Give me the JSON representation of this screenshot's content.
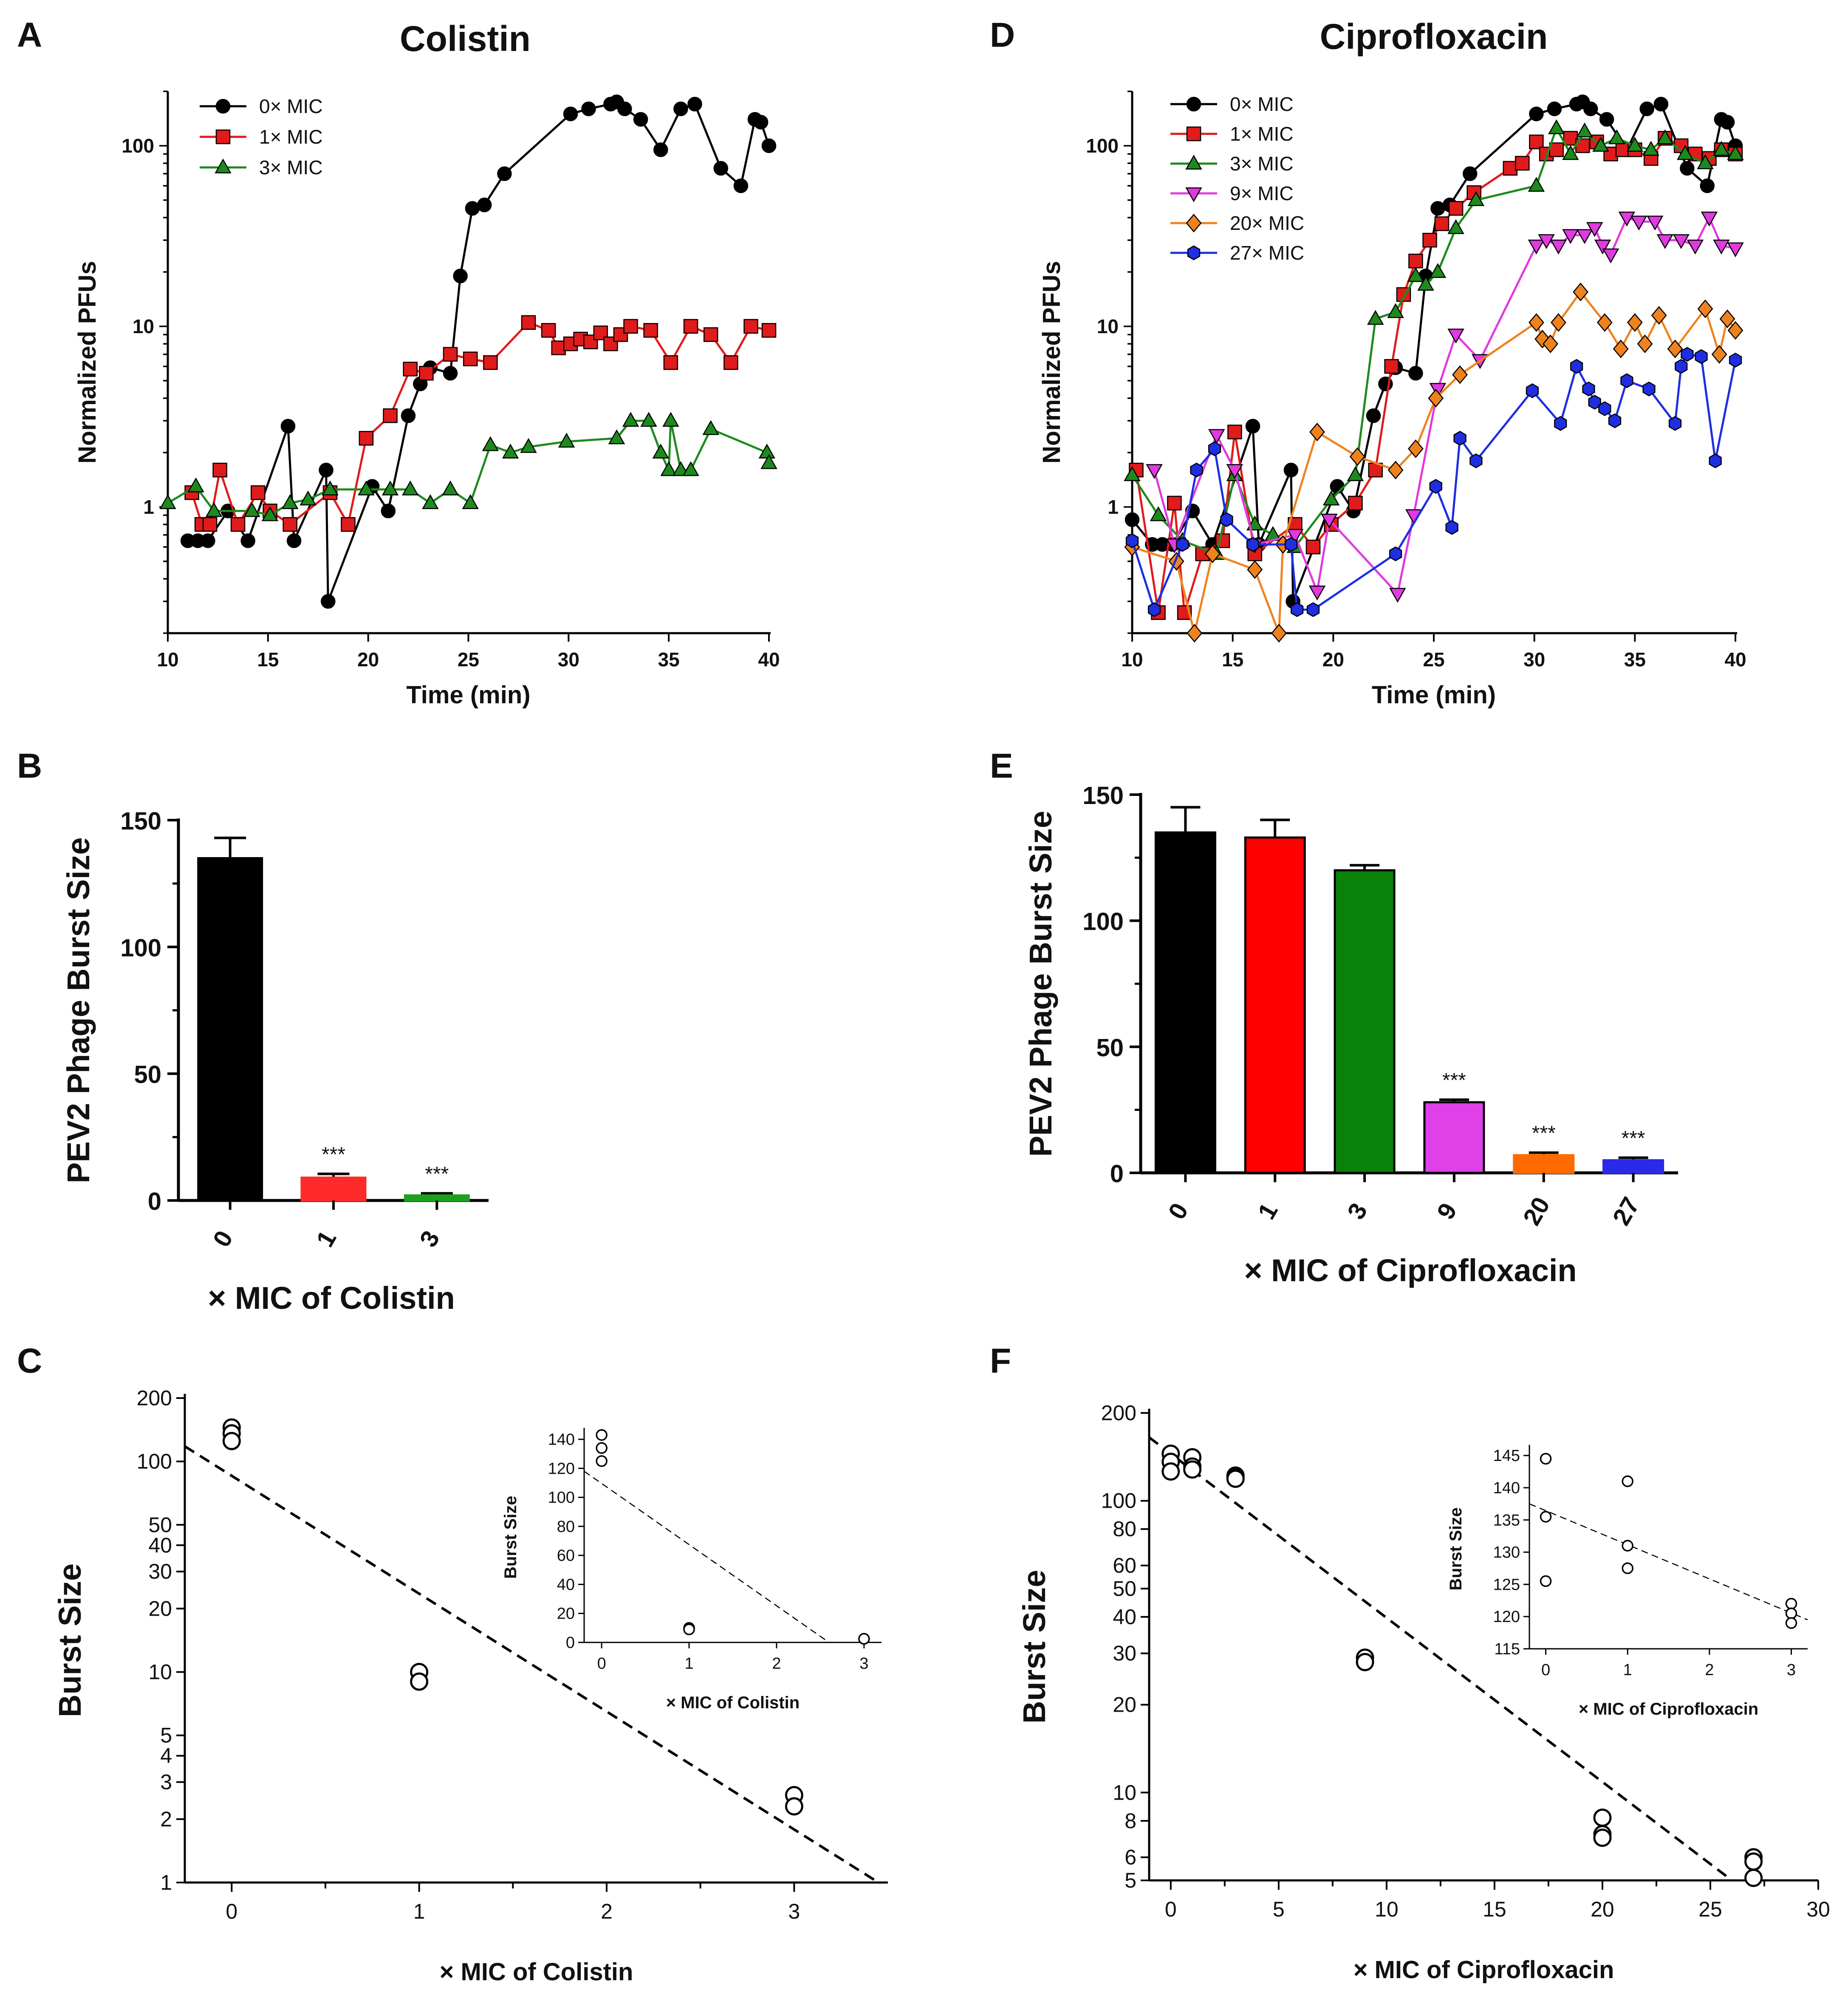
{
  "chart_data": [
    {
      "panel": "A",
      "type": "line",
      "title": "Colistin",
      "xlabel": "Time (min)",
      "ylabel": "Normalized PFUs",
      "xlim": [
        10,
        40
      ],
      "ylim": [
        0.2,
        200
      ],
      "yscale": "log",
      "xticks": [
        "10",
        "15",
        "20",
        "25",
        "30",
        "35",
        "40"
      ],
      "yticks": [
        {
          "v": 1,
          "label": "1"
        },
        {
          "v": 10,
          "label": "10"
        },
        {
          "v": 100,
          "label": "100"
        }
      ],
      "legend": "top-left",
      "series": [
        {
          "name": "0× MIC",
          "color": "#000000",
          "marker": "circle",
          "x": [
            11,
            11.5,
            12,
            13,
            14,
            16,
            16.3,
            17.9,
            18,
            20.2,
            21,
            22,
            22.6,
            23.1,
            24.1,
            24.6,
            25.2,
            25.8,
            26.8,
            30.1,
            31,
            32.1,
            32.4,
            32.8,
            33.6,
            34.6,
            35.6,
            36.3,
            37.6,
            38.6,
            39.3,
            39.6,
            40.0
          ],
          "y": [
            0.65,
            0.65,
            0.65,
            0.95,
            0.65,
            2.8,
            0.65,
            1.6,
            0.3,
            1.3,
            0.95,
            3.2,
            4.8,
            5.9,
            5.5,
            19,
            45,
            47,
            70,
            150,
            160,
            170,
            175,
            160,
            140,
            95,
            160,
            170,
            75,
            60,
            140,
            135,
            100
          ]
        },
        {
          "name": "1× MIC",
          "color": "#e01b1b",
          "marker": "square",
          "x": [
            11.2,
            11.7,
            12.1,
            12.6,
            13.5,
            14.5,
            15.1,
            16.1,
            18.1,
            19.0,
            19.9,
            21.1,
            22.1,
            22.9,
            24.1,
            25.1,
            26.1,
            28.0,
            29.0,
            29.5,
            30.1,
            30.6,
            31.1,
            31.6,
            32.1,
            32.6,
            33.1,
            34.1,
            35.1,
            36.1,
            37.1,
            38.1,
            39.1,
            40.0
          ],
          "y": [
            1.2,
            0.8,
            0.8,
            1.6,
            0.8,
            1.2,
            0.95,
            0.8,
            1.2,
            0.8,
            2.4,
            3.2,
            5.8,
            5.5,
            7.0,
            6.6,
            6.3,
            10.5,
            9.5,
            7.6,
            8.0,
            8.5,
            8.2,
            9.2,
            8.0,
            9.0,
            10.0,
            9.5,
            6.3,
            10.0,
            9.0,
            6.3,
            10.0,
            9.5
          ]
        },
        {
          "name": "3× MIC",
          "color": "#1e8a1e",
          "marker": "triangle",
          "x": [
            10,
            11.4,
            12.3,
            14.2,
            15.1,
            16.1,
            17.0,
            18.1,
            19.9,
            21.1,
            22.1,
            23.1,
            24.1,
            25.1,
            26.1,
            27.1,
            28.0,
            29.9,
            32.4,
            33.1,
            34.0,
            34.6,
            35.0,
            35.1,
            35.6,
            36.1,
            37.1,
            39.9,
            40.0
          ],
          "y": [
            1.05,
            1.3,
            0.95,
            0.95,
            0.9,
            1.05,
            1.1,
            1.25,
            1.25,
            1.25,
            1.25,
            1.05,
            1.25,
            1.05,
            2.2,
            2.0,
            2.15,
            2.3,
            2.4,
            3.0,
            3.0,
            2.0,
            1.6,
            3.0,
            1.6,
            1.6,
            2.7,
            2.0,
            1.75
          ]
        }
      ]
    },
    {
      "panel": "D",
      "type": "line",
      "title": "Ciprofloxacin",
      "xlabel": "Time (min)",
      "ylabel": "Normalized PFUs",
      "xlim": [
        10,
        40
      ],
      "ylim": [
        0.2,
        200
      ],
      "yscale": "log",
      "xticks": [
        "10",
        "15",
        "20",
        "25",
        "30",
        "35",
        "40"
      ],
      "yticks": [
        {
          "v": 1,
          "label": "1"
        },
        {
          "v": 10,
          "label": "10"
        },
        {
          "v": 100,
          "label": "100"
        }
      ],
      "legend": "top-left",
      "series": [
        {
          "name": "0× MIC",
          "color": "#000000",
          "marker": "circle",
          "x": [
            10,
            11,
            11.5,
            12,
            13,
            14,
            16,
            16.3,
            17.9,
            18,
            20.2,
            21,
            22,
            22.6,
            23.1,
            24.1,
            24.6,
            25.2,
            25.8,
            26.8,
            30.1,
            31,
            32.1,
            32.4,
            32.8,
            33.6,
            34.6,
            35.6,
            36.3,
            37.6,
            38.6,
            39.3,
            39.6,
            40.0
          ],
          "y": [
            0.85,
            0.62,
            0.62,
            0.62,
            0.95,
            0.62,
            2.8,
            0.62,
            1.6,
            0.3,
            1.3,
            0.95,
            3.2,
            4.8,
            5.9,
            5.5,
            19,
            45,
            47,
            70,
            150,
            160,
            170,
            175,
            160,
            140,
            95,
            160,
            170,
            75,
            60,
            140,
            135,
            100
          ]
        },
        {
          "name": "1× MIC",
          "color": "#e01b1b",
          "marker": "square",
          "x": [
            10.2,
            11.3,
            12.1,
            12.6,
            13.5,
            14.5,
            15.1,
            16.1,
            18.1,
            19.0,
            19.9,
            21.1,
            22.1,
            22.9,
            23.5,
            24.1,
            24.8,
            25.4,
            26.1,
            27.0,
            28.8,
            29.4,
            30.1,
            30.6,
            31.1,
            31.8,
            32.4,
            33.1,
            33.8,
            34.4,
            35.0,
            35.8,
            36.5,
            37.3,
            38.0,
            38.7,
            39.3,
            40.0
          ],
          "y": [
            1.6,
            0.26,
            1.05,
            0.26,
            0.55,
            0.65,
            2.6,
            0.55,
            0.8,
            0.6,
            0.8,
            1.05,
            1.6,
            6.0,
            15,
            23,
            30,
            37,
            45,
            55,
            75,
            80,
            105,
            90,
            95,
            110,
            100,
            105,
            90,
            95,
            95,
            85,
            110,
            100,
            90,
            85,
            95,
            90
          ]
        },
        {
          "name": "3× MIC",
          "color": "#1e8a1e",
          "marker": "triangle",
          "x": [
            10,
            11.3,
            12.5,
            14.2,
            15.1,
            16.1,
            17.0,
            18.1,
            19.9,
            21.1,
            22.1,
            23.1,
            24.1,
            24.6,
            25.2,
            26.1,
            27.1,
            30.1,
            31.1,
            31.8,
            32.5,
            33.3,
            34.1,
            35.0,
            35.8,
            36.5,
            37.5,
            38.5,
            39.3,
            40.0
          ],
          "y": [
            1.5,
            0.9,
            0.65,
            0.55,
            1.5,
            0.8,
            0.7,
            0.6,
            1.1,
            1.5,
            11,
            12,
            19,
            17,
            20,
            35,
            50,
            60,
            125,
            90,
            120,
            100,
            110,
            100,
            95,
            110,
            90,
            80,
            95,
            90
          ]
        },
        {
          "name": "9× MIC",
          "color": "#e03ae0",
          "marker": "triangle-down",
          "x": [
            11.1,
            12.1,
            14.2,
            15.1,
            16.1,
            18.1,
            19.2,
            19.8,
            23.2,
            24.0,
            25.2,
            26.1,
            27.3,
            30.1,
            30.6,
            31.2,
            31.8,
            32.5,
            33.0,
            33.4,
            33.8,
            34.6,
            35.2,
            36.0,
            36.5,
            37.3,
            38.0,
            38.7,
            39.3,
            40.0
          ],
          "y": [
            1.6,
            0.62,
            2.5,
            1.6,
            0.62,
            0.7,
            0.34,
            0.85,
            0.33,
            0.9,
            4.5,
            9.0,
            6.5,
            28,
            30,
            28,
            32,
            32,
            35,
            28,
            25,
            40,
            38,
            38,
            30,
            30,
            28,
            40,
            28,
            27
          ]
        },
        {
          "name": "20× MIC",
          "color": "#f0821e",
          "marker": "diamond",
          "x": [
            10,
            12.2,
            13.1,
            14.0,
            16.1,
            17.3,
            17.5,
            19.2,
            21.2,
            23.1,
            24.1,
            25.1,
            26.3,
            30.1,
            30.4,
            30.8,
            31.2,
            32.3,
            33.5,
            34.3,
            35.0,
            35.5,
            36.2,
            37.0,
            38.5,
            39.2,
            39.6,
            40.0
          ],
          "y": [
            0.6,
            0.5,
            0.2,
            0.55,
            0.45,
            0.2,
            0.62,
            2.6,
            1.9,
            1.6,
            2.1,
            4.0,
            5.4,
            10.5,
            8.5,
            8.0,
            10.5,
            15.5,
            10.5,
            7.5,
            10.5,
            8.0,
            11.5,
            7.5,
            12.5,
            7.0,
            11.0,
            9.5
          ]
        },
        {
          "name": "27× MIC",
          "color": "#1e2ee0",
          "marker": "hexagon",
          "x": [
            10,
            11.1,
            12.5,
            13.2,
            14.1,
            14.7,
            16.0,
            17.9,
            18.2,
            19.0,
            23.1,
            25.1,
            25.9,
            26.3,
            27.1,
            29.9,
            31.3,
            32.1,
            32.7,
            33.0,
            33.5,
            34.0,
            34.6,
            35.7,
            37.0,
            37.3,
            37.6,
            38.3,
            39.0,
            40.0
          ],
          "y": [
            0.65,
            0.27,
            0.62,
            1.6,
            2.1,
            0.85,
            0.62,
            0.62,
            0.27,
            0.27,
            0.55,
            1.3,
            0.77,
            2.4,
            1.8,
            4.4,
            2.9,
            6.0,
            4.5,
            3.8,
            3.5,
            3.0,
            5.0,
            4.5,
            2.9,
            6.0,
            7.0,
            6.8,
            1.8,
            6.5
          ]
        }
      ]
    },
    {
      "panel": "B",
      "type": "bar",
      "ylabel": "PEV2 Phage Burst Size",
      "xlabel": "× MIC of Colistin",
      "ylim": [
        0,
        150
      ],
      "yticks": [
        "0",
        "50",
        "100",
        "150"
      ],
      "categories": [
        "0",
        "1",
        "3"
      ],
      "values": [
        135,
        9,
        2
      ],
      "errors": [
        8,
        1.5,
        0.8
      ],
      "significance": [
        "",
        "***",
        "***"
      ],
      "colors": [
        "#000000",
        "#ff2a2a",
        "#1ea01e"
      ]
    },
    {
      "panel": "E",
      "type": "bar",
      "ylabel": "PEV2 Phage Burst Size",
      "xlabel": "× MIC of Ciprofloxacin",
      "ylim": [
        0,
        150
      ],
      "yticks": [
        "0",
        "50",
        "100",
        "150"
      ],
      "categories": [
        "0",
        "1",
        "3",
        "9",
        "20",
        "27"
      ],
      "values": [
        135,
        133,
        120,
        28,
        7,
        5
      ],
      "errors": [
        10,
        7,
        2,
        1,
        1,
        1
      ],
      "significance": [
        "",
        "",
        "",
        "***",
        "***",
        "***"
      ],
      "colors": [
        "#000000",
        "#ff0000",
        "#0a820a",
        "#e040e8",
        "#ff6a00",
        "#2a2ae8"
      ]
    },
    {
      "panel": "C",
      "type": "scatter",
      "xlabel": "× MIC of Colistin",
      "ylabel": "Burst Size",
      "xlim": [
        -0.25,
        3.5
      ],
      "ylim": [
        1,
        200
      ],
      "yscale": "log",
      "xticks": [
        "0",
        "1",
        "2",
        "3"
      ],
      "yticks": [
        {
          "v": 1,
          "label": "1"
        },
        {
          "v": 2,
          "label": "2"
        },
        {
          "v": 3,
          "label": "3"
        },
        {
          "v": 4,
          "label": "4"
        },
        {
          "v": 5,
          "label": "5"
        },
        {
          "v": 10,
          "label": "10"
        },
        {
          "v": 20,
          "label": "20"
        },
        {
          "v": 30,
          "label": "30"
        },
        {
          "v": 40,
          "label": "40"
        },
        {
          "v": 50,
          "label": "50"
        },
        {
          "v": 100,
          "label": "100"
        },
        {
          "v": 200,
          "label": "200"
        }
      ],
      "points": {
        "x": [
          0,
          0,
          0,
          1,
          1,
          3,
          3
        ],
        "y": [
          145,
          136,
          125,
          10,
          9,
          2.6,
          2.3
        ]
      },
      "fit_line": {
        "x": [
          -0.25,
          3.45
        ],
        "y": [
          118,
          1.0
        ]
      },
      "inset": {
        "xlabel": "× MIC of Colistin",
        "ylabel": "Burst Size",
        "xlim": [
          -0.2,
          3.2
        ],
        "ylim": [
          0,
          145
        ],
        "xticks": [
          "0",
          "1",
          "2",
          "3"
        ],
        "yticks": [
          "0",
          "20",
          "40",
          "60",
          "80",
          "100",
          "120",
          "140"
        ],
        "points": {
          "x": [
            0,
            0,
            0,
            1,
            1,
            3
          ],
          "y": [
            143,
            134,
            125,
            10,
            9,
            2.5
          ]
        },
        "fit_line": {
          "x": [
            -0.2,
            2.6
          ],
          "y": [
            118,
            0
          ]
        }
      }
    },
    {
      "panel": "F",
      "type": "scatter",
      "xlabel": "× MIC of Ciprofloxacin",
      "ylabel": "Burst Size",
      "xlim": [
        -1,
        30
      ],
      "ylim": [
        5,
        200
      ],
      "yscale": "log",
      "xticks": [
        "0",
        "5",
        "10",
        "15",
        "20",
        "25",
        "30"
      ],
      "yticks": [
        {
          "v": 5,
          "label": "5"
        },
        {
          "v": 6,
          "label": "6"
        },
        {
          "v": 8,
          "label": "8"
        },
        {
          "v": 10,
          "label": "10"
        },
        {
          "v": 20,
          "label": "20"
        },
        {
          "v": 30,
          "label": "30"
        },
        {
          "v": 40,
          "label": "40"
        },
        {
          "v": 50,
          "label": "50"
        },
        {
          "v": 60,
          "label": "60"
        },
        {
          "v": 80,
          "label": "80"
        },
        {
          "v": 100,
          "label": "100"
        },
        {
          "v": 200,
          "label": "200"
        }
      ],
      "points": {
        "x": [
          0,
          0,
          0,
          1,
          1,
          1,
          3,
          3,
          3,
          9,
          9,
          20,
          20,
          20,
          27,
          27,
          27
        ],
        "y": [
          145,
          136,
          126,
          141,
          131,
          128,
          122,
          120,
          119,
          29,
          28,
          8.2,
          7.2,
          7.0,
          6.0,
          5.8,
          5.1
        ]
      },
      "fit_line": {
        "x": [
          -1,
          26
        ],
        "y": [
          165,
          5.0
        ]
      },
      "inset": {
        "xlabel": "× MIC of Ciprofloxacin",
        "ylabel": "Burst Size",
        "xlim": [
          -0.2,
          3.2
        ],
        "ylim": [
          115,
          146
        ],
        "xticks": [
          "0",
          "1",
          "2",
          "3"
        ],
        "yticks": [
          "115",
          "120",
          "125",
          "130",
          "135",
          "140",
          "145"
        ],
        "points": {
          "x": [
            0,
            0,
            0,
            1,
            1,
            1,
            3,
            3,
            3
          ],
          "y": [
            144.5,
            135.5,
            125.5,
            141,
            131,
            127.5,
            122,
            120.5,
            119
          ]
        },
        "fit_line": {
          "x": [
            -0.2,
            3.2
          ],
          "y": [
            137.5,
            119.5
          ]
        }
      }
    }
  ],
  "panel_labels": [
    "A",
    "B",
    "C",
    "D",
    "E",
    "F"
  ]
}
